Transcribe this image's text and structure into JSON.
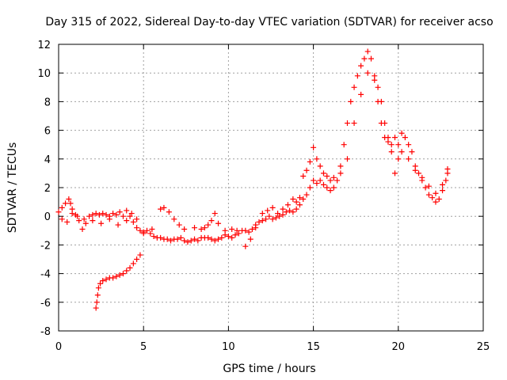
{
  "chart_data": {
    "type": "scatter",
    "title": "Day 315 of 2022, Sidereal Day-to-day VTEC variation (SDTVAR) for receiver acso",
    "xlabel": "GPS time / hours",
    "ylabel": "SDTVAR / TECUs",
    "xlim": [
      0,
      25
    ],
    "ylim": [
      -8,
      12
    ],
    "xticks": [
      "0",
      "5",
      "10",
      "15",
      "20",
      "25"
    ],
    "yticks": [
      "-8",
      "-6",
      "-4",
      "-2",
      "0",
      "2",
      "4",
      "6",
      "8",
      "10",
      "12"
    ],
    "grid": true,
    "marker": "+",
    "color": "#ff0000",
    "series": [
      {
        "name": "trace_main",
        "points": [
          [
            0.0,
            0.3
          ],
          [
            0.2,
            0.6
          ],
          [
            0.4,
            0.9
          ],
          [
            0.6,
            1.2
          ],
          [
            0.7,
            0.9
          ],
          [
            0.8,
            0.5
          ],
          [
            1.0,
            0.1
          ],
          [
            1.2,
            -0.3
          ],
          [
            1.4,
            -0.9
          ],
          [
            1.6,
            -0.5
          ],
          [
            1.8,
            0.0
          ],
          [
            2.0,
            0.1
          ],
          [
            2.2,
            0.2
          ],
          [
            2.4,
            0.1
          ],
          [
            2.6,
            0.2
          ],
          [
            2.8,
            0.1
          ],
          [
            3.0,
            0.0
          ],
          [
            3.2,
            0.2
          ],
          [
            3.4,
            0.1
          ],
          [
            3.6,
            0.3
          ],
          [
            3.8,
            0.0
          ],
          [
            4.0,
            0.4
          ],
          [
            4.2,
            0.0
          ],
          [
            4.4,
            -0.4
          ],
          [
            4.6,
            -0.8
          ],
          [
            4.8,
            -1.0
          ],
          [
            5.0,
            -1.1
          ],
          [
            5.2,
            -1.0
          ],
          [
            5.4,
            -1.2
          ],
          [
            5.6,
            -1.4
          ],
          [
            5.8,
            -1.5
          ],
          [
            6.0,
            -1.5
          ],
          [
            6.2,
            -1.6
          ],
          [
            6.4,
            -1.6
          ],
          [
            6.6,
            -1.7
          ],
          [
            6.8,
            -1.6
          ],
          [
            7.0,
            -1.6
          ],
          [
            7.2,
            -1.5
          ],
          [
            7.4,
            -1.7
          ],
          [
            7.6,
            -1.8
          ],
          [
            7.8,
            -1.7
          ],
          [
            8.0,
            -1.6
          ],
          [
            8.2,
            -1.7
          ],
          [
            8.4,
            -1.5
          ],
          [
            8.6,
            -1.5
          ],
          [
            8.8,
            -1.5
          ],
          [
            9.0,
            -1.6
          ],
          [
            9.2,
            -1.7
          ],
          [
            9.4,
            -1.6
          ],
          [
            9.6,
            -1.5
          ],
          [
            9.8,
            -1.3
          ],
          [
            10.0,
            -1.4
          ],
          [
            10.2,
            -1.5
          ],
          [
            10.4,
            -1.3
          ],
          [
            10.6,
            -1.2
          ],
          [
            10.8,
            -1.0
          ],
          [
            11.0,
            -1.0
          ],
          [
            11.2,
            -1.1
          ],
          [
            11.4,
            -0.9
          ],
          [
            11.6,
            -0.6
          ],
          [
            11.8,
            -0.4
          ],
          [
            12.0,
            -0.3
          ],
          [
            12.2,
            -0.2
          ],
          [
            12.4,
            0.0
          ],
          [
            12.6,
            -0.2
          ],
          [
            12.8,
            -0.1
          ],
          [
            13.0,
            0.0
          ],
          [
            13.2,
            0.1
          ],
          [
            13.4,
            0.3
          ],
          [
            13.6,
            0.4
          ],
          [
            13.8,
            0.3
          ],
          [
            14.0,
            0.5
          ],
          [
            14.2,
            0.8
          ],
          [
            14.4,
            1.2
          ],
          [
            14.6,
            1.5
          ],
          [
            14.8,
            2.0
          ],
          [
            15.0,
            2.5
          ],
          [
            15.2,
            2.3
          ],
          [
            15.4,
            2.5
          ],
          [
            15.6,
            2.2
          ],
          [
            15.8,
            2.0
          ],
          [
            16.0,
            1.8
          ],
          [
            16.2,
            2.0
          ],
          [
            16.4,
            2.5
          ],
          [
            16.6,
            3.5
          ],
          [
            16.8,
            5.0
          ],
          [
            17.0,
            6.5
          ],
          [
            17.2,
            8.0
          ],
          [
            17.4,
            9.0
          ],
          [
            17.6,
            9.8
          ],
          [
            17.8,
            10.5
          ],
          [
            18.0,
            11.0
          ],
          [
            18.2,
            11.5
          ],
          [
            18.4,
            11.0
          ],
          [
            18.6,
            9.5
          ],
          [
            18.8,
            8.0
          ],
          [
            19.0,
            6.5
          ],
          [
            19.2,
            5.5
          ],
          [
            19.4,
            5.2
          ],
          [
            19.6,
            5.0
          ],
          [
            19.8,
            5.5
          ],
          [
            20.0,
            5.0
          ],
          [
            20.2,
            4.5
          ],
          [
            20.4,
            5.5
          ],
          [
            20.6,
            5.0
          ],
          [
            20.8,
            4.5
          ],
          [
            21.0,
            3.5
          ],
          [
            21.2,
            3.0
          ],
          [
            21.4,
            2.5
          ],
          [
            21.6,
            2.0
          ],
          [
            21.8,
            1.5
          ],
          [
            22.0,
            1.3
          ],
          [
            22.2,
            1.0
          ],
          [
            22.4,
            1.2
          ],
          [
            22.6,
            1.8
          ],
          [
            22.8,
            2.5
          ],
          [
            22.9,
            3.3
          ]
        ]
      },
      {
        "name": "trace_upper",
        "points": [
          [
            0.2,
            -0.2
          ],
          [
            0.5,
            -0.4
          ],
          [
            0.8,
            0.2
          ],
          [
            1.1,
            0.0
          ],
          [
            1.5,
            -0.2
          ],
          [
            2.0,
            -0.3
          ],
          [
            2.5,
            -0.5
          ],
          [
            3.0,
            -0.2
          ],
          [
            3.5,
            -0.6
          ],
          [
            4.0,
            -0.3
          ],
          [
            4.3,
            0.2
          ],
          [
            4.6,
            -0.2
          ],
          [
            5.0,
            -1.2
          ],
          [
            5.5,
            -0.9
          ],
          [
            6.0,
            0.5
          ],
          [
            6.2,
            0.6
          ],
          [
            6.5,
            0.3
          ],
          [
            6.8,
            -0.2
          ],
          [
            7.1,
            -0.6
          ],
          [
            7.4,
            -0.9
          ],
          [
            8.0,
            -0.8
          ],
          [
            8.4,
            -0.9
          ],
          [
            8.6,
            -0.8
          ],
          [
            8.8,
            -0.6
          ],
          [
            9.0,
            -0.3
          ],
          [
            9.2,
            0.2
          ],
          [
            9.4,
            -0.5
          ],
          [
            9.8,
            -1.0
          ],
          [
            10.2,
            -0.9
          ],
          [
            10.5,
            -1.0
          ],
          [
            11.0,
            -2.1
          ],
          [
            11.3,
            -1.6
          ],
          [
            11.6,
            -0.8
          ],
          [
            12.0,
            0.2
          ],
          [
            12.3,
            0.4
          ],
          [
            12.6,
            0.6
          ],
          [
            12.9,
            0.2
          ],
          [
            13.2,
            0.5
          ],
          [
            13.5,
            0.8
          ],
          [
            13.8,
            1.2
          ],
          [
            14.0,
            1.0
          ],
          [
            14.2,
            1.3
          ],
          [
            14.4,
            2.8
          ],
          [
            14.6,
            3.2
          ],
          [
            14.8,
            3.8
          ],
          [
            15.0,
            4.8
          ],
          [
            15.2,
            4.0
          ],
          [
            15.4,
            3.5
          ],
          [
            15.6,
            3.0
          ],
          [
            15.8,
            2.8
          ],
          [
            16.0,
            2.5
          ],
          [
            16.2,
            2.7
          ],
          [
            16.6,
            3.0
          ],
          [
            17.0,
            4.0
          ],
          [
            17.4,
            6.5
          ],
          [
            17.8,
            8.5
          ],
          [
            18.2,
            10.0
          ],
          [
            18.6,
            9.8
          ],
          [
            18.8,
            9.0
          ],
          [
            19.0,
            8.0
          ],
          [
            19.2,
            6.5
          ],
          [
            19.4,
            5.5
          ],
          [
            19.6,
            4.5
          ],
          [
            19.8,
            3.0
          ],
          [
            20.0,
            4.0
          ],
          [
            20.2,
            5.8
          ],
          [
            20.6,
            4.0
          ],
          [
            21.0,
            3.2
          ],
          [
            21.4,
            2.7
          ],
          [
            21.8,
            2.1
          ],
          [
            22.2,
            1.6
          ],
          [
            22.6,
            2.2
          ],
          [
            22.9,
            3.0
          ]
        ]
      },
      {
        "name": "trace_low",
        "points": [
          [
            2.2,
            -6.4
          ],
          [
            2.25,
            -6.0
          ],
          [
            2.3,
            -5.5
          ],
          [
            2.35,
            -5.0
          ],
          [
            2.45,
            -4.7
          ],
          [
            2.6,
            -4.5
          ],
          [
            2.8,
            -4.4
          ],
          [
            3.0,
            -4.3
          ],
          [
            3.2,
            -4.3
          ],
          [
            3.4,
            -4.2
          ],
          [
            3.6,
            -4.1
          ],
          [
            3.8,
            -4.0
          ],
          [
            4.0,
            -3.8
          ],
          [
            4.2,
            -3.6
          ],
          [
            4.4,
            -3.3
          ],
          [
            4.6,
            -3.0
          ],
          [
            4.8,
            -2.7
          ]
        ]
      }
    ]
  }
}
